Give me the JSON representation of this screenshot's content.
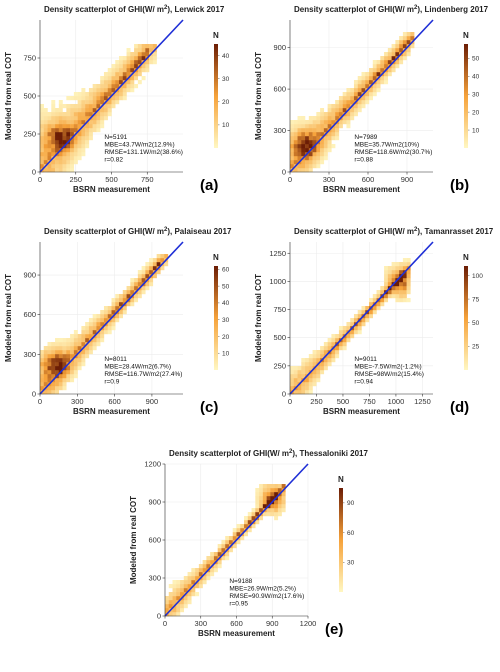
{
  "figure": {
    "colors": {
      "low": "#fff7c2",
      "mid": "#f6a23a",
      "high": "#6b1d05",
      "one_to_one_line": "#1f2fd6",
      "grid": "#ececec"
    }
  },
  "chart_data": [
    {
      "type": "heatmap",
      "panel_label": "(a)",
      "title_prefix": "Density scatterplot of GHI(W/ m",
      "title_sup": "2",
      "title_suffix": "), Lerwick  2017",
      "xlabel": "BSRN measurement",
      "ylabel": "Modeled from real COT",
      "xlim": [
        0,
        1000
      ],
      "ylim": [
        0,
        1000
      ],
      "xticks": [
        0,
        250,
        500,
        750
      ],
      "yticks": [
        0,
        250,
        500,
        750
      ],
      "legend_title": "N",
      "legend_range": [
        0,
        45
      ],
      "legend_ticks": [
        10,
        20,
        30,
        40
      ],
      "stats": [
        "N=5191",
        "MBE=43.7W/m2(12.9%)",
        "RMSE=131.1W/m2(38.6%)",
        "r=0.82"
      ],
      "density_peak": {
        "x": 140,
        "y": 230
      },
      "max_value": 800
    },
    {
      "type": "heatmap",
      "panel_label": "(b)",
      "title_prefix": "Density scatterplot of GHI(W/ m",
      "title_sup": "2",
      "title_suffix": "), Lindenberg  2017",
      "xlabel": "BSRN measurement",
      "ylabel": "Modeled from real COT",
      "xlim": [
        0,
        1100
      ],
      "ylim": [
        0,
        1100
      ],
      "xticks": [
        0,
        300,
        600,
        900
      ],
      "yticks": [
        0,
        300,
        600,
        900
      ],
      "legend_title": "N",
      "legend_range": [
        0,
        58
      ],
      "legend_ticks": [
        10,
        20,
        30,
        40,
        50
      ],
      "stats": [
        "N=7989",
        "MBE=35.7W/m2(10%)",
        "RMSE=118.6W/m2(30.7%)",
        "r=0.88"
      ],
      "density_peak": {
        "x": 120,
        "y": 200
      },
      "max_value": 950
    },
    {
      "type": "heatmap",
      "panel_label": "(c)",
      "title_prefix": "Density scatterplot of GHI(W/ m",
      "title_sup": "2",
      "title_suffix": "), Palaiseau  2017",
      "xlabel": "BSRN measurement",
      "ylabel": "Modeled from real COT",
      "xlim": [
        0,
        1150
      ],
      "ylim": [
        0,
        1150
      ],
      "xticks": [
        0,
        300,
        600,
        900
      ],
      "yticks": [
        0,
        300,
        600,
        900
      ],
      "legend_title": "N",
      "legend_range": [
        0,
        62
      ],
      "legend_ticks": [
        10,
        20,
        30,
        40,
        50,
        60
      ],
      "stats": [
        "N=8011",
        "MBE=28.4W/m2(6.7%)",
        "RMSE=116.7W/m2(27.4%)",
        "r=0.9"
      ],
      "density_peak": {
        "x": 120,
        "y": 230
      },
      "max_value": 1000
    },
    {
      "type": "heatmap",
      "panel_label": "(d)",
      "title_prefix": "Density scatterplot of GHI(W/ m",
      "title_sup": "2",
      "title_suffix": "), Tamanrasset  2017",
      "xlabel": "BSRN measurement",
      "ylabel": "Modeled from real COT",
      "xlim": [
        0,
        1350
      ],
      "ylim": [
        0,
        1350
      ],
      "xticks": [
        0,
        250,
        500,
        750,
        1000,
        1250
      ],
      "yticks": [
        0,
        250,
        500,
        750,
        1000,
        1250
      ],
      "legend_title": "N",
      "legend_range": [
        0,
        110
      ],
      "legend_ticks": [
        25,
        50,
        75,
        100
      ],
      "stats": [
        "N=9011",
        "MBE=-7.5W/m2(-1.2%)",
        "RMSE=98W/m2(15.4%)",
        "r=0.94"
      ],
      "density_peak": {
        "x": 1050,
        "y": 1000
      },
      "max_value": 1120
    },
    {
      "type": "heatmap",
      "panel_label": "(e)",
      "title_prefix": "Density scatterplot of GHI(W/ m",
      "title_sup": "2",
      "title_suffix": "), Thessaloniki  2017",
      "xlabel": "BSRN measurement",
      "ylabel": "Modeled from real COT",
      "xlim": [
        0,
        1200
      ],
      "ylim": [
        0,
        1200
      ],
      "xticks": [
        0,
        300,
        600,
        900,
        1200
      ],
      "yticks": [
        0,
        300,
        600,
        900,
        1200
      ],
      "legend_title": "N",
      "legend_range": [
        0,
        105
      ],
      "legend_ticks": [
        30,
        60,
        90
      ],
      "stats": [
        "N=9188",
        "MBE=26.9W/m2(5.2%)",
        "RMSE=90.9W/m2(17.6%)",
        "r=0.95"
      ],
      "density_peak": {
        "x": 920,
        "y": 930
      },
      "max_value": 980
    }
  ]
}
